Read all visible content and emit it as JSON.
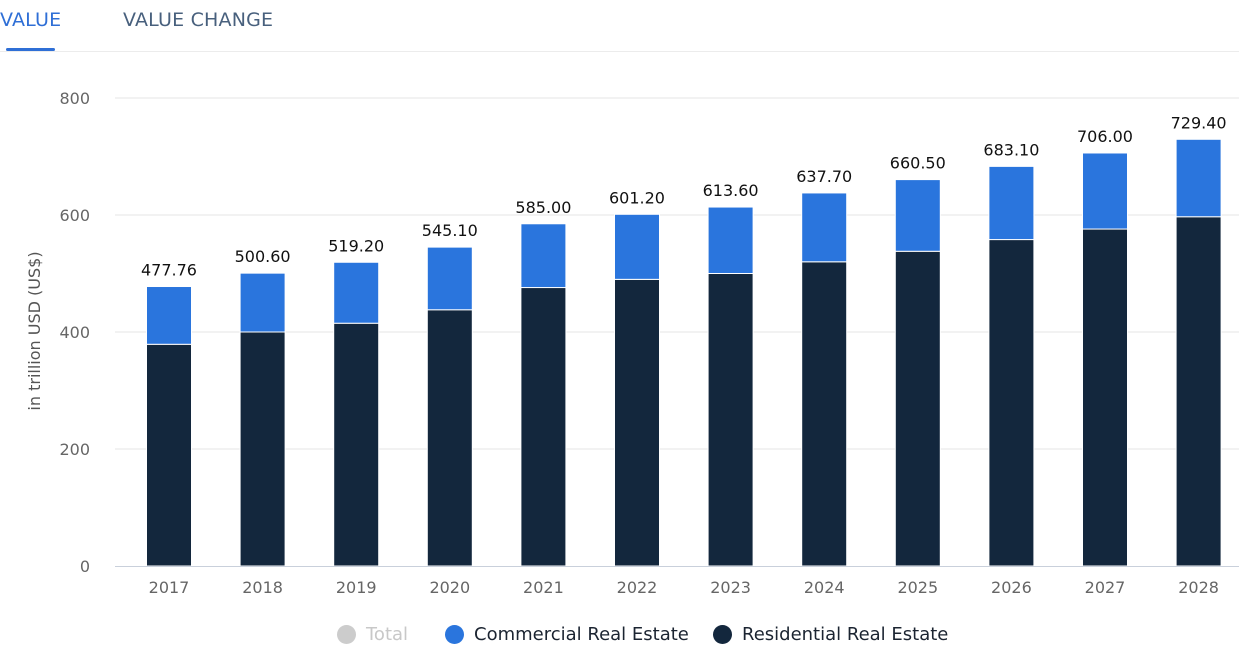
{
  "tabs": [
    {
      "label": "VALUE",
      "active": true
    },
    {
      "label": "VALUE CHANGE",
      "active": false
    }
  ],
  "colors": {
    "accent": "#2f6fd6",
    "commercial": "#2a75dd",
    "residential": "#13273d",
    "total_disabled": "#cccccc"
  },
  "chart_data": {
    "type": "bar",
    "stacked": true,
    "title": "",
    "xlabel": "",
    "ylabel": "in trillion USD (US$)",
    "ylim": [
      0,
      800
    ],
    "yticks": [
      0,
      200,
      400,
      600,
      800
    ],
    "grid": true,
    "legend_position": "bottom",
    "categories": [
      "2017",
      "2018",
      "2019",
      "2020",
      "2021",
      "2022",
      "2023",
      "2024",
      "2025",
      "2026",
      "2027",
      "2028"
    ],
    "series": [
      {
        "name": "Residential Real Estate",
        "color": "#13273d",
        "values": [
          379,
          400,
          415,
          438,
          476,
          490,
          500,
          520,
          538,
          558,
          576,
          597
        ]
      },
      {
        "name": "Commercial Real Estate",
        "color": "#2a75dd",
        "values": [
          98.76,
          100.6,
          104.2,
          107.1,
          109.0,
          111.2,
          113.6,
          117.7,
          122.5,
          125.1,
          130.0,
          132.4
        ]
      }
    ],
    "totals": [
      477.76,
      500.6,
      519.2,
      545.1,
      585.0,
      601.2,
      613.6,
      637.7,
      660.5,
      683.1,
      706.0,
      729.4
    ],
    "total_labels": [
      "477.76",
      "500.60",
      "519.20",
      "545.10",
      "585.00",
      "601.20",
      "613.60",
      "637.70",
      "660.50",
      "683.10",
      "706.00",
      "729.40"
    ],
    "legend": [
      {
        "name": "Total",
        "color": "#cccccc",
        "disabled": true
      },
      {
        "name": "Commercial Real Estate",
        "color": "#2a75dd",
        "disabled": false
      },
      {
        "name": "Residential Real Estate",
        "color": "#13273d",
        "disabled": false
      }
    ]
  }
}
